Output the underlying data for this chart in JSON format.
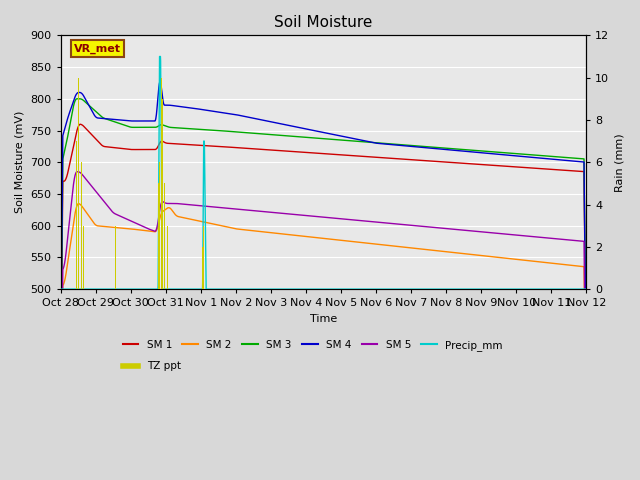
{
  "title": "Soil Moisture",
  "xlabel": "Time",
  "ylabel_left": "Soil Moisture (mV)",
  "ylabel_right": "Rain (mm)",
  "ylim_left": [
    500,
    900
  ],
  "ylim_right": [
    0,
    12
  ],
  "fig_bg": "#d8d8d8",
  "plot_bg": "#e8e8e8",
  "station_label": "VR_met",
  "x_tick_labels": [
    "Oct 28",
    "Oct 29",
    "Oct 30",
    "Oct 31",
    "Nov 1",
    "Nov 2",
    "Nov 3",
    "Nov 4",
    "Nov 5",
    "Nov 6",
    "Nov 7",
    "Nov 8",
    "Nov 9",
    "Nov 10",
    "Nov 11",
    "Nov 12"
  ],
  "yticks_left": [
    500,
    550,
    600,
    650,
    700,
    750,
    800,
    850,
    900
  ],
  "yticks_right": [
    0,
    2,
    4,
    6,
    8,
    10,
    12
  ],
  "colors": {
    "sm1": "#cc0000",
    "sm2": "#ff8800",
    "sm3": "#00aa00",
    "sm4": "#0000cc",
    "sm5": "#9900aa",
    "precip": "#00cccc",
    "tzppt": "#cccc00"
  }
}
